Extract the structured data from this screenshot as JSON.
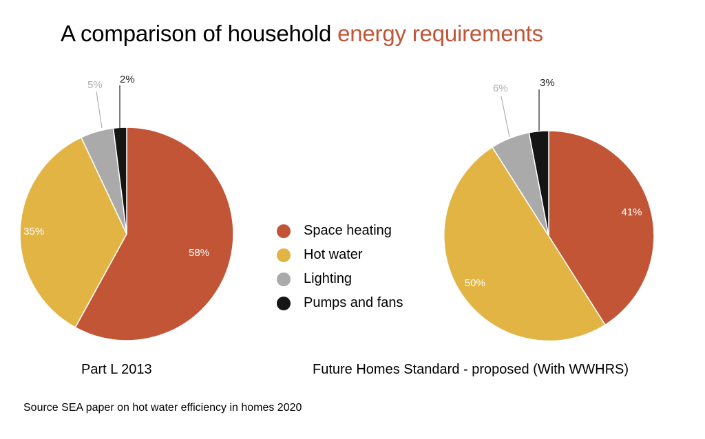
{
  "title": {
    "prefix": "A comparison of household ",
    "accent": "energy requirements"
  },
  "colors": {
    "accent": "#c25536",
    "space_heating": "#c25536",
    "hot_water": "#e2b443",
    "lighting": "#aaaaaa",
    "pumps": "#151515"
  },
  "legend": {
    "position": "center",
    "items": [
      {
        "label": "Space heating",
        "color": "#c25536"
      },
      {
        "label": "Hot water",
        "color": "#e2b443"
      },
      {
        "label": "Lighting",
        "color": "#aaaaaa"
      },
      {
        "label": "Pumps and fans",
        "color": "#151515"
      }
    ]
  },
  "chart_data": [
    {
      "type": "pie",
      "caption": "Part L 2013",
      "categories": [
        "Space heating",
        "Hot water",
        "Lighting",
        "Pumps and fans"
      ],
      "values": [
        58,
        35,
        5,
        2
      ],
      "labels": [
        "58%",
        "35%",
        "5%",
        "2%"
      ],
      "colors": [
        "#c25536",
        "#e2b443",
        "#aaaaaa",
        "#151515"
      ]
    },
    {
      "type": "pie",
      "caption": "Future Homes Standard - proposed (With WWHRS)",
      "categories": [
        "Space heating",
        "Hot water",
        "Lighting",
        "Pumps and fans"
      ],
      "values": [
        41,
        50,
        6,
        3
      ],
      "labels": [
        "41%",
        "50%",
        "6%",
        "3%"
      ],
      "colors": [
        "#c25536",
        "#e2b443",
        "#aaaaaa",
        "#151515"
      ]
    }
  ],
  "source": "Source SEA paper on hot water efficiency in homes 2020"
}
